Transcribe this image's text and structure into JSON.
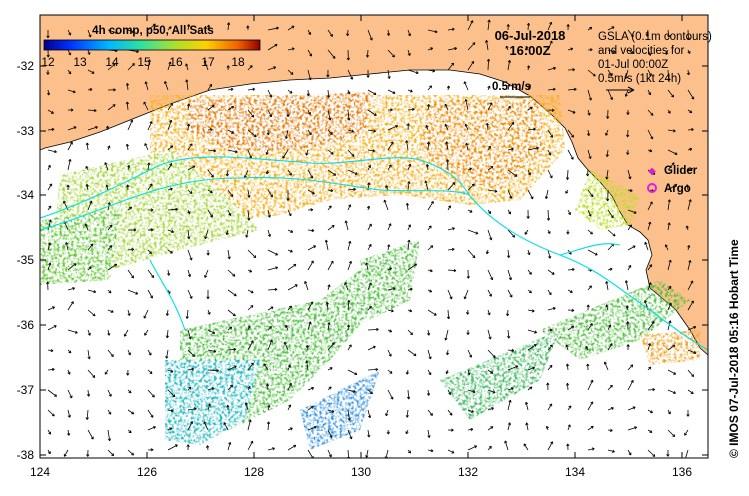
{
  "colorbar": {
    "title": "4h comp, p50, All Sats",
    "ticks": [
      "12",
      "13",
      "14",
      "15",
      "16",
      "17",
      "18"
    ]
  },
  "header": {
    "date": "06-Jul-2018",
    "time": "16:00Z"
  },
  "info": {
    "line1": "GSLA (0.1m contours)",
    "line2": "and velocities for",
    "line3": "01-Jul 00:00Z",
    "line4": "0.5m/s (1kt 24h)"
  },
  "scale_label": "0.5 m/s",
  "legend": {
    "glider": "Glider",
    "argo": "Argo",
    "glider_color": "#d020d0",
    "argo_color": "#e020e0"
  },
  "credit": "© IMOS 07-Jul-2018 05:16 Hobart Time",
  "axes": {
    "x_ticks": [
      "124",
      "126",
      "128",
      "130",
      "132",
      "134",
      "136"
    ],
    "y_ticks": [
      "-32",
      "-33",
      "-34",
      "-35",
      "-36",
      "-37",
      "-38"
    ]
  },
  "colors": {
    "land": "#fcc08c",
    "contour": "#00e0e0",
    "background": "#ffffff"
  }
}
